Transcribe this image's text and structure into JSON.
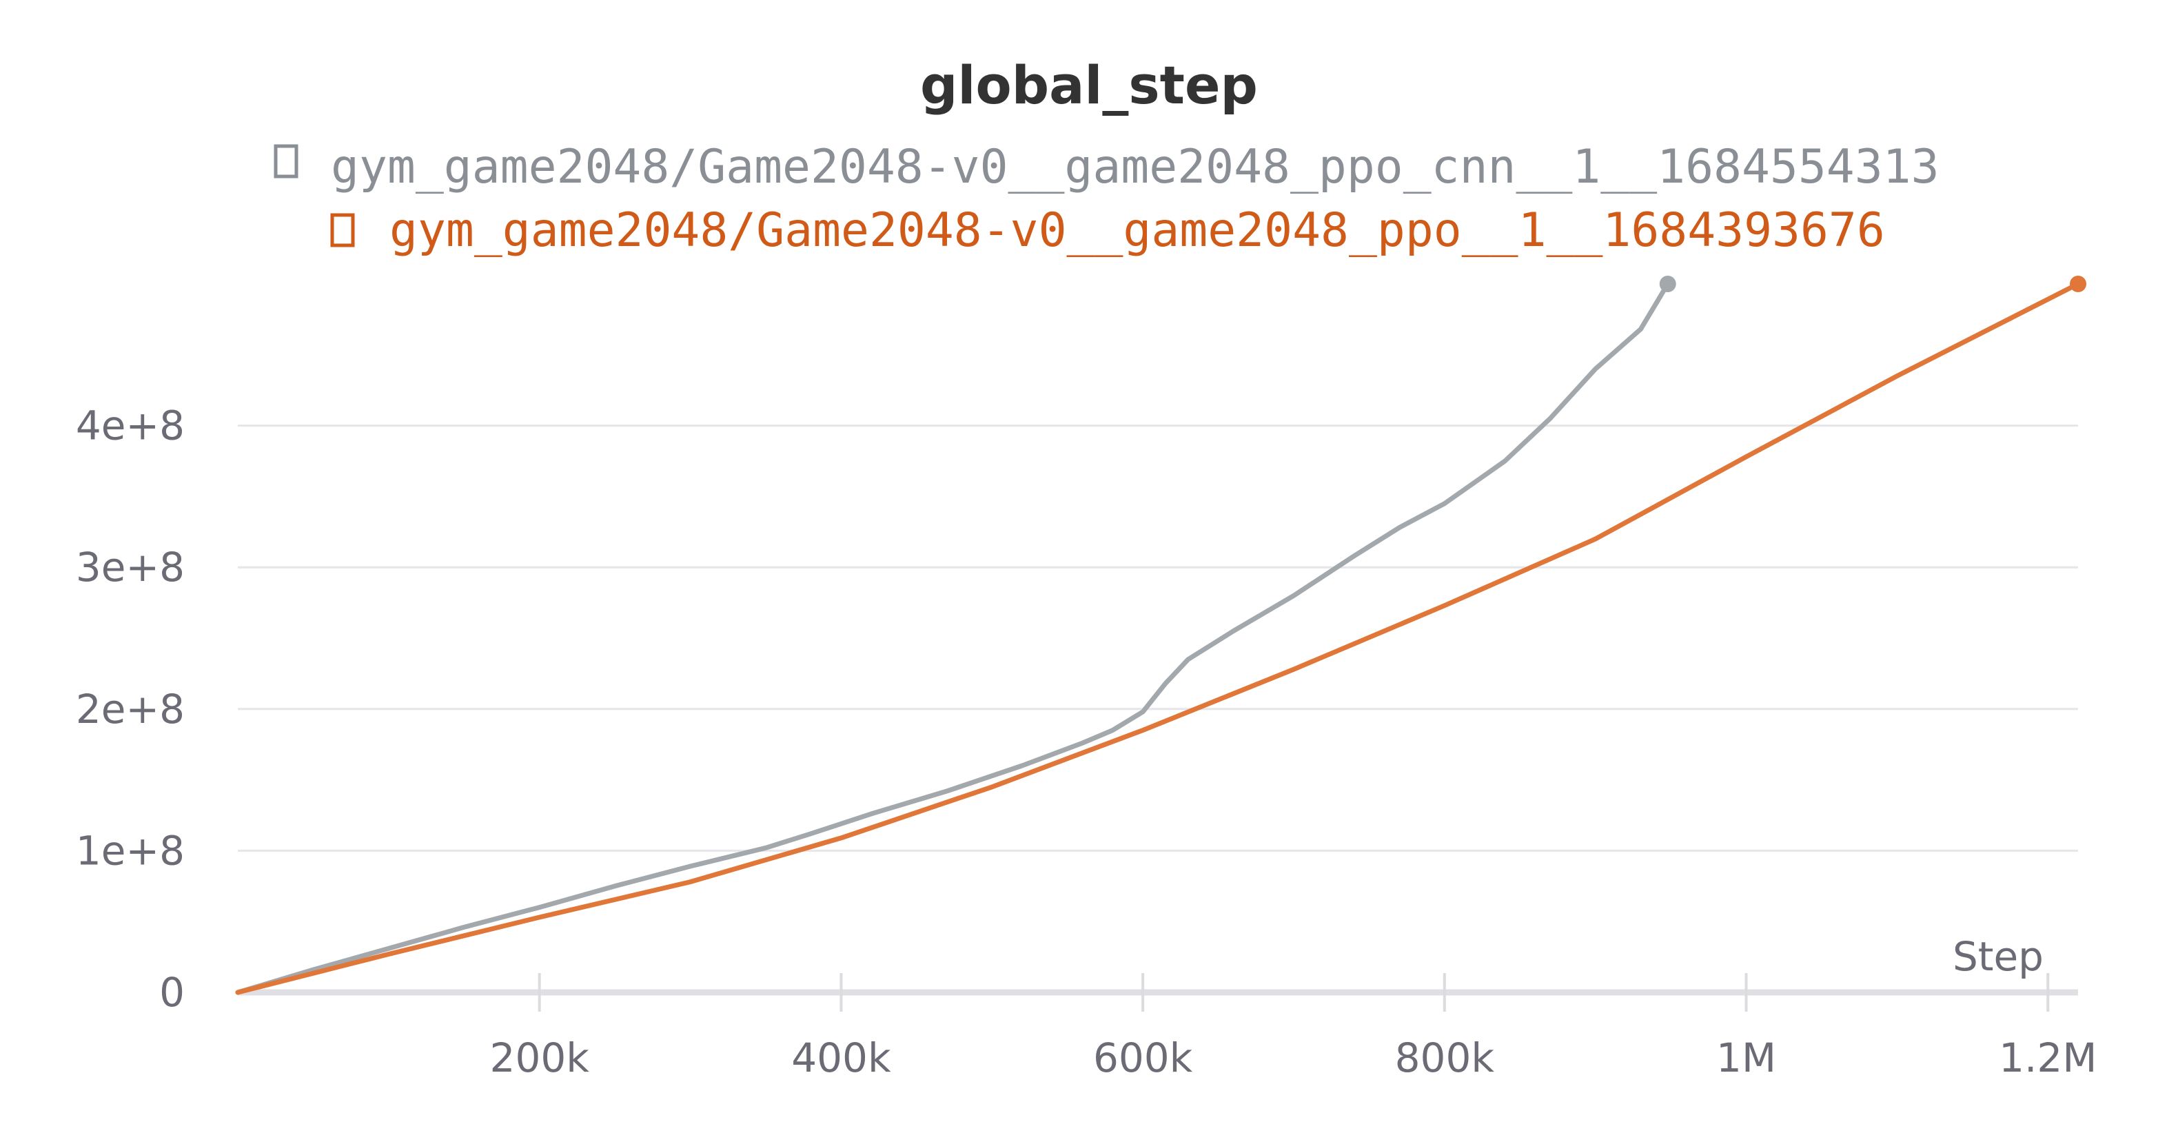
{
  "chart_data": {
    "type": "line",
    "title": "global_step",
    "xlabel": "Step",
    "ylabel": "",
    "xlim": [
      0,
      1220000
    ],
    "ylim": [
      0,
      500000000
    ],
    "x_ticks": [
      {
        "value": 200000,
        "label": "200k"
      },
      {
        "value": 400000,
        "label": "400k"
      },
      {
        "value": 600000,
        "label": "600k"
      },
      {
        "value": 800000,
        "label": "800k"
      },
      {
        "value": 1000000,
        "label": "1M"
      },
      {
        "value": 1200000,
        "label": "1.2M"
      }
    ],
    "y_ticks": [
      {
        "value": 0,
        "label": "0"
      },
      {
        "value": 100000000,
        "label": "1e+8"
      },
      {
        "value": 200000000,
        "label": "2e+8"
      },
      {
        "value": 300000000,
        "label": "3e+8"
      },
      {
        "value": 400000000,
        "label": "4e+8"
      }
    ],
    "grid": true,
    "legend_placement": "top",
    "series": [
      {
        "name": "gym_game2048/Game2048-v0__game2048_ppo_cnn__1__1684554313",
        "color": "#a3a8ac",
        "legend_color": "#8a8f96",
        "x": [
          0,
          50000,
          100000,
          150000,
          200000,
          250000,
          300000,
          350000,
          380000,
          420000,
          470000,
          520000,
          560000,
          580000,
          600000,
          615000,
          630000,
          660000,
          700000,
          740000,
          770000,
          800000,
          840000,
          870000,
          900000,
          930000,
          948000
        ],
        "y": [
          0,
          16000000,
          31000000,
          46000000,
          60000000,
          75000000,
          89000000,
          102000000,
          112000000,
          126000000,
          142000000,
          160000000,
          176000000,
          185000000,
          198000000,
          218000000,
          235000000,
          255000000,
          280000000,
          308000000,
          328000000,
          345000000,
          375000000,
          405000000,
          440000000,
          468000000,
          500000000
        ]
      },
      {
        "name": "gym_game2048/Game2048-v0__game2048_ppo__1__1684393676",
        "color": "#e07637",
        "legend_color": "#d05a17",
        "x": [
          0,
          100000,
          200000,
          300000,
          400000,
          500000,
          600000,
          700000,
          800000,
          900000,
          1000000,
          1100000,
          1220000
        ],
        "y": [
          0,
          27000000,
          53000000,
          78000000,
          109000000,
          145000000,
          185000000,
          228000000,
          273000000,
          320000000,
          378000000,
          435000000,
          500000000
        ]
      }
    ]
  }
}
